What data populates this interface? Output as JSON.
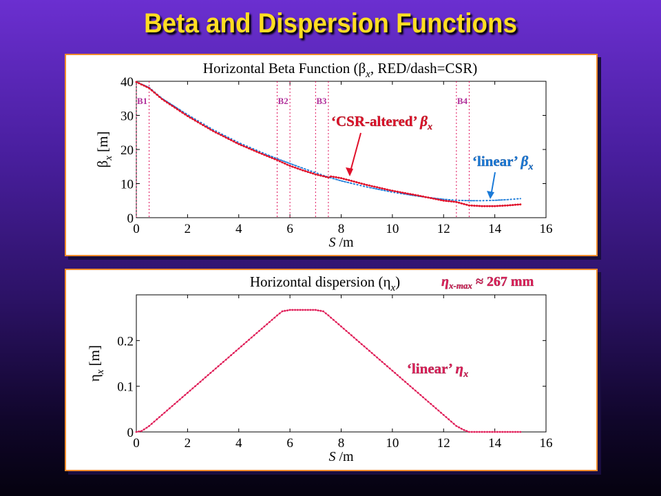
{
  "slide_title": "Beta and Dispersion Functions",
  "colors": {
    "title": "#ffdd22",
    "csr": "#e0102a",
    "linear": "#1a7ad8",
    "dispersion": "#e0205a",
    "marker_line": "#e0105a",
    "marker_label": "#b0309a",
    "panel_border": "#f08a2a"
  },
  "annotations": {
    "csr_label": "‘CSR-altered’ ",
    "csr_sym": "β",
    "csr_sub": "x",
    "linear_beta_label": "‘linear’ ",
    "linear_beta_sym": "β",
    "linear_beta_sub": "x",
    "eta_max_sym": "η",
    "eta_max_sub": "x-max",
    "eta_max_rest": " ≈ 267 mm",
    "linear_eta_label": "‘linear’ ",
    "linear_eta_sym": "η",
    "linear_eta_sub": "x"
  },
  "chart_data": [
    {
      "type": "line",
      "title_parts": [
        "Horizontal Beta Function (β",
        "x",
        ", RED/dash=CSR)"
      ],
      "xlabel": "S /m",
      "ylabel_sym": "β",
      "ylabel_sub": "x",
      "ylabel_unit": "[m]",
      "xlim": [
        0,
        16
      ],
      "ylim": [
        0,
        40
      ],
      "xticks": [
        0,
        2,
        4,
        6,
        8,
        10,
        12,
        14,
        16
      ],
      "yticks": [
        0,
        10,
        20,
        30,
        40
      ],
      "grid": false,
      "markers": [
        {
          "label": "B1",
          "x": [
            0,
            0.5
          ]
        },
        {
          "label": "B2",
          "x": [
            5.5,
            6.0
          ]
        },
        {
          "label": "B3",
          "x": [
            7.0,
            7.5
          ]
        },
        {
          "label": "B4",
          "x": [
            12.5,
            13.0
          ]
        }
      ],
      "series": [
        {
          "style": "linear",
          "x": [
            0,
            0.5,
            1,
            2,
            3,
            4,
            5,
            5.5,
            6,
            6.5,
            7,
            7.5,
            8,
            9,
            10,
            11,
            12,
            12.5,
            13,
            13.5,
            14,
            14.5,
            15
          ],
          "y": [
            39.8,
            38.2,
            35.0,
            30.2,
            25.8,
            22.0,
            18.8,
            17.3,
            15.9,
            14.5,
            13.2,
            11.9,
            10.8,
            9.0,
            7.5,
            6.3,
            5.4,
            5.1,
            5.0,
            5.0,
            5.1,
            5.3,
            5.6
          ]
        },
        {
          "style": "csr",
          "x": [
            0,
            0.5,
            1,
            2,
            3,
            4,
            5,
            5.5,
            6,
            6.5,
            7,
            7.5,
            7.6,
            8,
            9,
            10,
            11,
            12,
            12.5,
            13,
            13.5,
            14,
            14.5,
            15
          ],
          "y": [
            39.8,
            38.0,
            34.8,
            29.8,
            25.4,
            21.6,
            18.4,
            16.9,
            15.2,
            13.9,
            12.7,
            11.8,
            12.1,
            11.6,
            9.6,
            7.9,
            6.5,
            5.0,
            4.6,
            3.6,
            3.4,
            3.4,
            3.6,
            3.9
          ]
        }
      ]
    },
    {
      "type": "line",
      "title_parts": [
        "Horizontal dispersion (η",
        "x",
        ")"
      ],
      "xlabel": "S /m",
      "ylabel_sym": "η",
      "ylabel_sub": "x",
      "ylabel_unit": "[m]",
      "xlim": [
        0,
        16
      ],
      "ylim": [
        0,
        0.3
      ],
      "xticks": [
        0,
        2,
        4,
        6,
        8,
        10,
        12,
        14,
        16
      ],
      "yticks": [
        0,
        0.1,
        0.2
      ],
      "ytick_labels": [
        "0",
        "0.1",
        "0.2"
      ],
      "grid": false,
      "series": [
        {
          "style": "dispersion",
          "x": [
            0,
            0.2,
            0.4,
            0.5,
            5.5,
            5.7,
            6.0,
            7.0,
            7.3,
            7.5,
            12.5,
            12.8,
            13.0,
            15
          ],
          "y": [
            0,
            0.002,
            0.009,
            0.013,
            0.255,
            0.264,
            0.267,
            0.267,
            0.264,
            0.255,
            0.013,
            0.004,
            0,
            0
          ]
        }
      ]
    }
  ]
}
